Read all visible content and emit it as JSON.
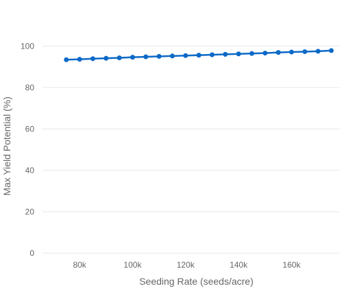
{
  "chart_data": {
    "type": "line",
    "title": "",
    "xlabel": "Seeding Rate (seeds/acre)",
    "ylabel": "Max Yield Potential (%)",
    "xlim": [
      66000,
      178000
    ],
    "ylim": [
      0,
      110
    ],
    "grid": true,
    "legend": "none",
    "x_ticks": [
      80000,
      100000,
      120000,
      140000,
      160000
    ],
    "x_tick_labels": [
      "80k",
      "100k",
      "120k",
      "140k",
      "160k"
    ],
    "y_ticks": [
      0,
      20,
      40,
      60,
      80,
      100
    ],
    "y_tick_labels": [
      "0",
      "20",
      "40",
      "60",
      "80",
      "100"
    ],
    "x": [
      75000,
      80000,
      85000,
      90000,
      95000,
      100000,
      105000,
      110000,
      115000,
      120000,
      125000,
      130000,
      135000,
      140000,
      145000,
      150000,
      155000,
      160000,
      165000,
      170000,
      175000
    ],
    "series": [
      {
        "color": "#0b69c7",
        "values": [
          93.4,
          93.6,
          93.9,
          94.1,
          94.3,
          94.6,
          94.8,
          95.0,
          95.2,
          95.4,
          95.6,
          95.8,
          96.0,
          96.2,
          96.4,
          96.6,
          96.9,
          97.1,
          97.3,
          97.5,
          97.8
        ]
      }
    ]
  }
}
